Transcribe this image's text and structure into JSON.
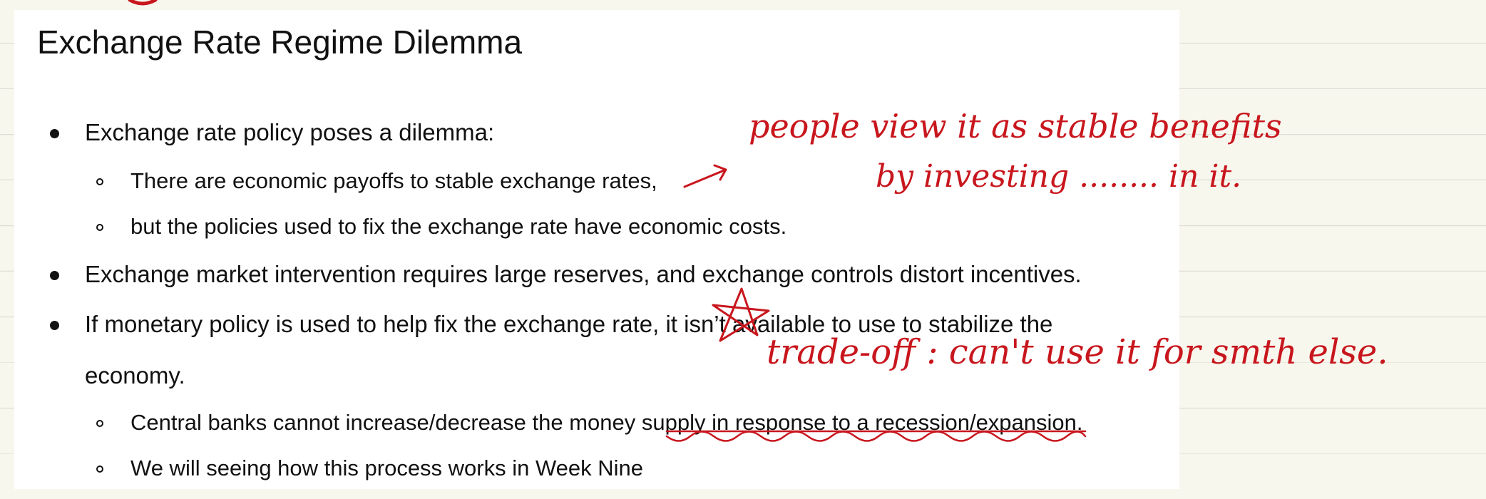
{
  "slide": {
    "title": "Exchange Rate Regime Dilemma",
    "bullets": [
      "Exchange rate policy poses a dilemma:",
      "Exchange market intervention requires large reserves, and exchange controls distort incentives.",
      "If monetary policy is used to help fix the exchange rate, it isn’t available to use to stabilize the",
      "economy."
    ],
    "sub_bullets": [
      "There are economic payoffs to stable exchange rates,",
      "but the policies used to fix the exchange rate have economic costs.",
      "Central banks cannot increase/decrease the money supply in response to a recession/expansion.",
      "We will seeing how this process works in Week Nine"
    ]
  },
  "annotations": {
    "ink_color": "#c8161d",
    "note_1_line_1": "people  view it as  stable benefits",
    "note_1_line_2": "by investing ........ in   it.",
    "note_2": "trade-off :  can't use it  for smth else."
  }
}
